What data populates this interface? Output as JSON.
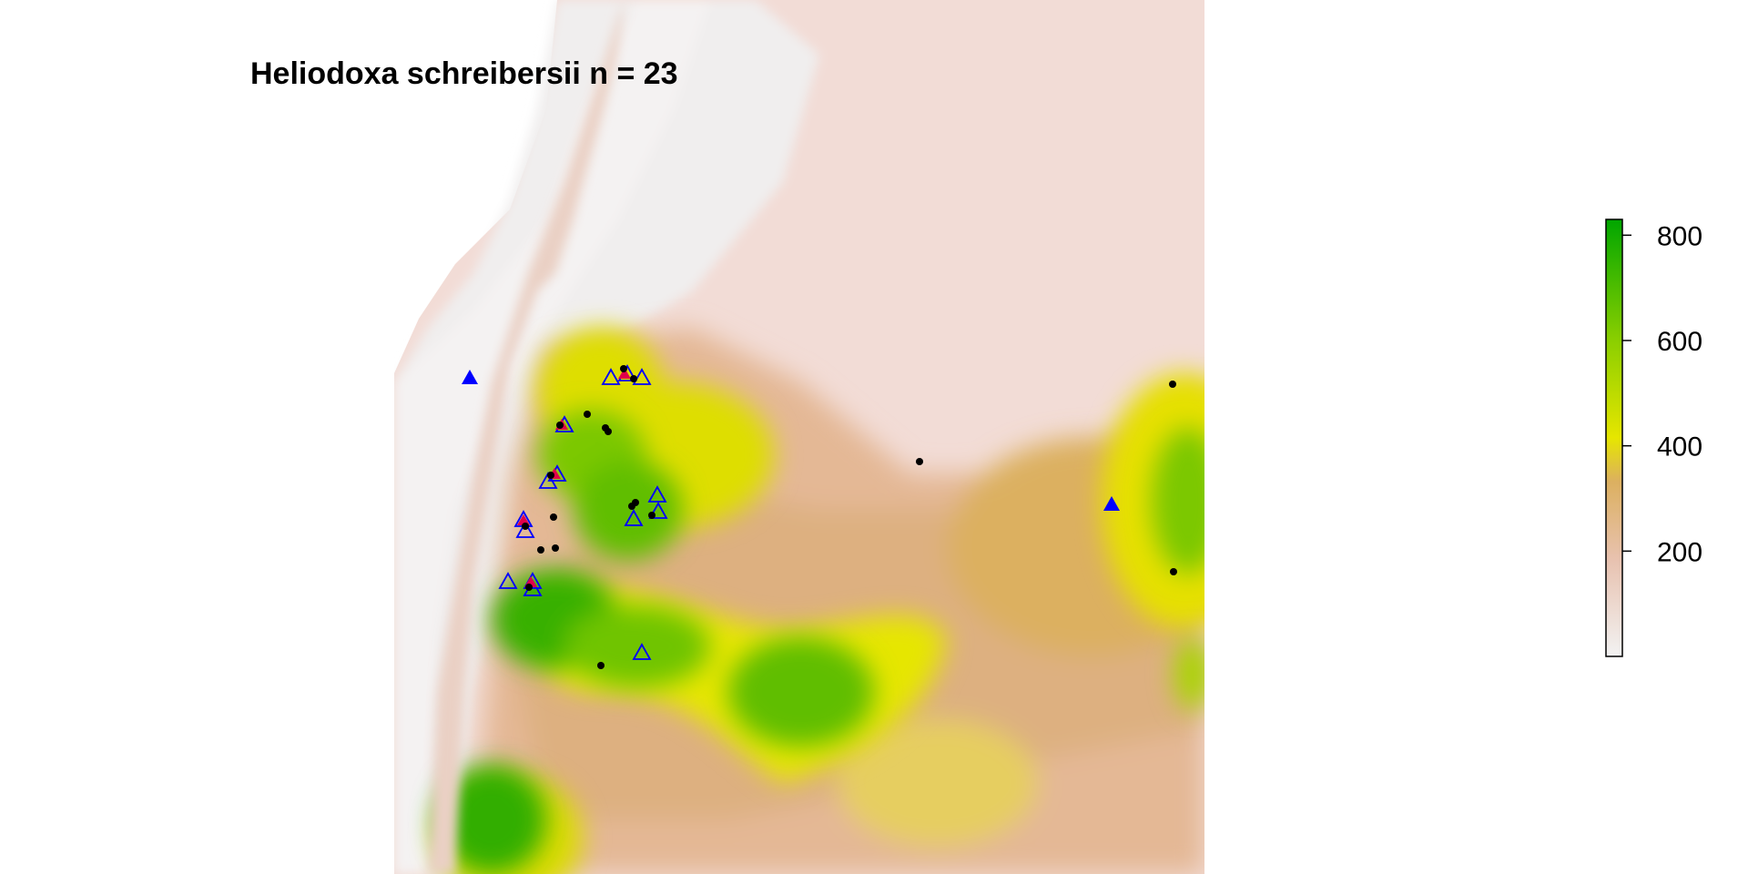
{
  "title": "Heliodoxa schreibersii n = 23",
  "legend": {
    "ticks": [
      {
        "value": 800,
        "label": "800"
      },
      {
        "value": 600,
        "label": "600"
      },
      {
        "value": 400,
        "label": "400"
      },
      {
        "value": 200,
        "label": "200"
      }
    ],
    "range": [
      0,
      830
    ],
    "colors": {
      "low": "#f2f2f2",
      "low_mid": "#e8c2b0",
      "mid": "#dcb060",
      "mid_high": "#e6e600",
      "high": "#00a600"
    }
  },
  "map": {
    "type": "raster",
    "colors": {
      "mountains": "#f0eded",
      "lowland": "#f2d8d2",
      "marker_open": "#0000ff",
      "marker_filled": "#0000ff",
      "occurrence": "#000000",
      "highlight": "#ff0000"
    }
  }
}
